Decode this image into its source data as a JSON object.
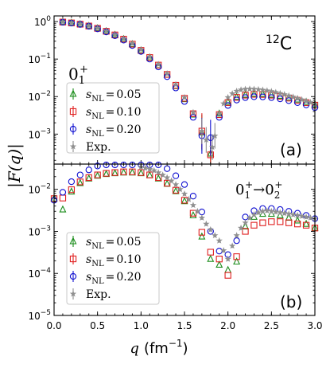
{
  "figure": {
    "ylabel": "|F(q)|",
    "xlabel_main": "q",
    "xlabel_unit": "(fm",
    "xlabel_exp": "−1",
    "xlabel_close": ")"
  },
  "colors": {
    "s005": "#1a8c1a",
    "s010": "#e02020",
    "s020": "#1010d0",
    "exp": "#909090"
  },
  "chart_data": [
    {
      "type": "scatter",
      "panel": "(a)",
      "nucleus": "C",
      "nucleus_mass": "12",
      "state_label": "0",
      "state_sub": "1",
      "state_sup": "+",
      "yscale": "log",
      "xlim": [
        0.0,
        3.0
      ],
      "ylim_log10": [
        -3.8,
        0.15
      ],
      "x_ticks": [
        "0.0",
        "0.5",
        "1.0",
        "1.5",
        "2.0",
        "2.5",
        "3.0"
      ],
      "y_ticks": [
        {
          "base": "10",
          "exp": "0",
          "log": 0
        },
        {
          "base": "10",
          "exp": "−1",
          "log": -1
        },
        {
          "base": "10",
          "exp": "−2",
          "log": -2
        },
        {
          "base": "10",
          "exp": "−3",
          "log": -3
        }
      ],
      "legend": [
        {
          "sym": "s",
          "sub": "NL",
          "eq": "=",
          "val": "0.05",
          "marker": "triangle",
          "color_key": "s005"
        },
        {
          "sym": "s",
          "sub": "NL",
          "eq": "=",
          "val": "0.10",
          "marker": "square",
          "color_key": "s010"
        },
        {
          "sym": "s",
          "sub": "NL",
          "eq": "=",
          "val": "0.20",
          "marker": "circle",
          "color_key": "s020"
        },
        {
          "text": "Exp.",
          "marker": "star",
          "color_key": "exp"
        }
      ],
      "series": [
        {
          "name": "sNL=0.05",
          "marker": "triangle",
          "color_key": "s005",
          "x": [
            0.1,
            0.2,
            0.3,
            0.4,
            0.5,
            0.6,
            0.7,
            0.8,
            0.9,
            1.0,
            1.1,
            1.2,
            1.3,
            1.4,
            1.5,
            1.6,
            1.7,
            1.8,
            1.9,
            2.0,
            2.1,
            2.2,
            2.3,
            2.4,
            2.5,
            2.6,
            2.7,
            2.8,
            2.9,
            3.0
          ],
          "y": [
            0.97,
            0.92,
            0.85,
            0.76,
            0.66,
            0.55,
            0.44,
            0.34,
            0.25,
            0.17,
            0.11,
            0.068,
            0.038,
            0.019,
            0.0085,
            0.0033,
            0.0011,
            0.0003,
            0.0035,
            0.0072,
            0.0098,
            0.0112,
            0.0118,
            0.0117,
            0.0112,
            0.0104,
            0.0094,
            0.0083,
            0.0072,
            0.0062
          ]
        },
        {
          "name": "sNL=0.10",
          "marker": "square",
          "color_key": "s010",
          "x": [
            0.1,
            0.2,
            0.3,
            0.4,
            0.5,
            0.6,
            0.7,
            0.8,
            0.9,
            1.0,
            1.1,
            1.2,
            1.3,
            1.4,
            1.5,
            1.6,
            1.7,
            1.8,
            1.9,
            2.0,
            2.1,
            2.2,
            2.3,
            2.4,
            2.5,
            2.6,
            2.7,
            2.8,
            2.9,
            3.0
          ],
          "y": [
            0.97,
            0.92,
            0.85,
            0.76,
            0.66,
            0.55,
            0.44,
            0.34,
            0.25,
            0.17,
            0.11,
            0.069,
            0.039,
            0.02,
            0.009,
            0.0035,
            0.0012,
            0.00028,
            0.0033,
            0.0069,
            0.0095,
            0.0109,
            0.0115,
            0.0114,
            0.0109,
            0.0101,
            0.0091,
            0.008,
            0.0069,
            0.0059
          ]
        },
        {
          "name": "sNL=0.20",
          "marker": "circle",
          "color_key": "s020",
          "x": [
            0.1,
            0.2,
            0.3,
            0.4,
            0.5,
            0.6,
            0.7,
            0.8,
            0.9,
            1.0,
            1.1,
            1.2,
            1.3,
            1.4,
            1.5,
            1.6,
            1.7,
            1.8,
            1.9,
            2.0,
            2.1,
            2.2,
            2.3,
            2.4,
            2.5,
            2.6,
            2.7,
            2.8,
            2.9,
            3.0
          ],
          "y": [
            0.96,
            0.91,
            0.84,
            0.75,
            0.64,
            0.53,
            0.42,
            0.32,
            0.23,
            0.16,
            0.1,
            0.062,
            0.034,
            0.017,
            0.0074,
            0.0028,
            0.0009,
            0.0008,
            0.0028,
            0.0058,
            0.0081,
            0.0094,
            0.0099,
            0.0098,
            0.0094,
            0.0087,
            0.0078,
            0.0069,
            0.006,
            0.0051
          ]
        },
        {
          "name": "Exp.",
          "marker": "star",
          "color_key": "exp",
          "x": [
            0.1,
            0.2,
            0.3,
            0.4,
            0.5,
            0.6,
            0.7,
            0.8,
            0.9,
            1.0,
            1.1,
            1.2,
            1.3,
            1.4,
            1.5,
            1.6,
            1.7,
            1.75,
            1.82,
            1.85,
            1.9,
            1.95,
            2.0,
            2.05,
            2.1,
            2.15,
            2.2,
            2.25,
            2.3,
            2.35,
            2.4,
            2.45,
            2.5,
            2.55,
            2.6,
            2.65,
            2.7,
            2.75,
            2.8,
            2.85,
            2.9,
            2.95,
            3.0
          ],
          "y": [
            0.98,
            0.93,
            0.86,
            0.77,
            0.67,
            0.56,
            0.45,
            0.35,
            0.26,
            0.18,
            0.115,
            0.072,
            0.041,
            0.021,
            0.0095,
            0.0038,
            0.0012,
            0.0007,
            0.00045,
            0.0009,
            0.0035,
            0.0065,
            0.0095,
            0.012,
            0.014,
            0.0152,
            0.0158,
            0.016,
            0.0158,
            0.0155,
            0.015,
            0.0144,
            0.0138,
            0.013,
            0.0122,
            0.0114,
            0.0106,
            0.0098,
            0.009,
            0.0083,
            0.0076,
            0.007,
            0.0064
          ]
        }
      ]
    },
    {
      "type": "scatter",
      "panel": "(b)",
      "transition_label": "0",
      "trans_from_sub": "1",
      "trans_from_sup": "+",
      "trans_arrow": "→",
      "trans_to": "0",
      "trans_to_sub": "2",
      "trans_to_sup": "+",
      "yscale": "log",
      "xlim": [
        0.0,
        3.0
      ],
      "ylim_log10": [
        -5.0,
        -1.4
      ],
      "x_ticks": [
        "0.0",
        "0.5",
        "1.0",
        "1.5",
        "2.0",
        "2.5",
        "3.0"
      ],
      "y_ticks": [
        {
          "base": "10",
          "exp": "−2",
          "log": -2
        },
        {
          "base": "10",
          "exp": "−3",
          "log": -3
        },
        {
          "base": "10",
          "exp": "−4",
          "log": -4
        },
        {
          "base": "10",
          "exp": "−5",
          "log": -5
        }
      ],
      "legend": [
        {
          "sym": "s",
          "sub": "NL",
          "eq": "=",
          "val": "0.05",
          "marker": "triangle",
          "color_key": "s005"
        },
        {
          "sym": "s",
          "sub": "NL",
          "eq": "=",
          "val": "0.10",
          "marker": "square",
          "color_key": "s010"
        },
        {
          "sym": "s",
          "sub": "NL",
          "eq": "=",
          "val": "0.20",
          "marker": "circle",
          "color_key": "s020"
        },
        {
          "text": "Exp.",
          "marker": "star",
          "color_key": "exp"
        }
      ],
      "series": [
        {
          "name": "sNL=0.05",
          "marker": "triangle",
          "color_key": "s005",
          "x": [
            0.0,
            0.1,
            0.2,
            0.3,
            0.4,
            0.5,
            0.6,
            0.7,
            0.8,
            0.9,
            1.0,
            1.1,
            1.2,
            1.3,
            1.4,
            1.5,
            1.6,
            1.7,
            1.8,
            1.9,
            2.0,
            2.1,
            2.2,
            2.3,
            2.4,
            2.5,
            2.6,
            2.7,
            2.8,
            2.9,
            3.0
          ],
          "y": [
            0.006,
            0.0033,
            0.0088,
            0.014,
            0.018,
            0.021,
            0.023,
            0.024,
            0.025,
            0.025,
            0.024,
            0.0215,
            0.018,
            0.0135,
            0.009,
            0.0052,
            0.0024,
            0.00075,
            0.00022,
            0.00016,
            0.00012,
            0.00019,
            0.0013,
            0.0022,
            0.0026,
            0.0026,
            0.0024,
            0.0021,
            0.0018,
            0.0015,
            0.0012
          ]
        },
        {
          "name": "sNL=0.10",
          "marker": "square",
          "color_key": "s010",
          "x": [
            0.0,
            0.1,
            0.2,
            0.3,
            0.4,
            0.5,
            0.6,
            0.7,
            0.8,
            0.9,
            1.0,
            1.1,
            1.2,
            1.3,
            1.4,
            1.5,
            1.6,
            1.7,
            1.8,
            1.9,
            2.0,
            2.1,
            2.2,
            2.3,
            2.4,
            2.5,
            2.6,
            2.7,
            2.8,
            2.9,
            3.0
          ],
          "y": [
            0.006,
            0.0062,
            0.0098,
            0.015,
            0.019,
            0.022,
            0.024,
            0.025,
            0.026,
            0.026,
            0.025,
            0.022,
            0.019,
            0.014,
            0.0095,
            0.0055,
            0.0027,
            0.00095,
            0.00032,
            0.00022,
            9e-05,
            0.00025,
            0.001,
            0.0014,
            0.0016,
            0.0017,
            0.0017,
            0.0016,
            0.0015,
            0.0014,
            0.0012
          ]
        },
        {
          "name": "sNL=0.20",
          "marker": "circle",
          "color_key": "s020",
          "x": [
            0.0,
            0.1,
            0.2,
            0.3,
            0.4,
            0.5,
            0.6,
            0.7,
            0.8,
            0.9,
            1.0,
            1.1,
            1.2,
            1.3,
            1.4,
            1.5,
            1.6,
            1.7,
            1.8,
            1.9,
            2.0,
            2.1,
            2.2,
            2.3,
            2.4,
            2.5,
            2.6,
            2.7,
            2.8,
            2.9,
            3.0
          ],
          "y": [
            0.0055,
            0.0085,
            0.0152,
            0.022,
            0.029,
            0.036,
            0.042,
            0.047,
            0.05,
            0.051,
            0.05,
            0.046,
            0.039,
            0.031,
            0.021,
            0.013,
            0.0069,
            0.0029,
            0.001,
            0.00034,
            0.00028,
            0.0006,
            0.0022,
            0.0031,
            0.0035,
            0.0035,
            0.0033,
            0.003,
            0.0027,
            0.0024,
            0.002
          ]
        },
        {
          "name": "Exp.",
          "marker": "star",
          "color_key": "exp",
          "x": [
            1.0,
            1.05,
            1.1,
            1.15,
            1.2,
            1.25,
            1.3,
            1.35,
            1.4,
            1.45,
            1.5,
            1.55,
            1.6,
            1.65,
            1.7,
            1.75,
            1.8,
            1.85,
            1.9,
            1.95,
            2.0,
            2.05,
            2.1,
            2.15,
            2.2,
            2.25,
            2.3,
            2.35,
            2.4,
            2.45,
            2.5,
            2.55,
            2.6,
            2.65,
            2.7,
            2.75,
            2.8,
            2.85,
            2.9,
            2.95,
            3.0
          ],
          "y": [
            0.034,
            0.032,
            0.03,
            0.028,
            0.025,
            0.022,
            0.019,
            0.016,
            0.013,
            0.01,
            0.0078,
            0.0058,
            0.0042,
            0.003,
            0.0021,
            0.0015,
            0.0011,
            0.0008,
            0.0006,
            0.00035,
            0.00022,
            0.00045,
            0.0008,
            0.0012,
            0.0016,
            0.0021,
            0.0025,
            0.0028,
            0.003,
            0.0031,
            0.003,
            0.0029,
            0.0028,
            0.0027,
            0.0026,
            0.0025,
            0.0024,
            0.0023,
            0.0022,
            0.0021,
            0.002
          ]
        }
      ]
    }
  ]
}
